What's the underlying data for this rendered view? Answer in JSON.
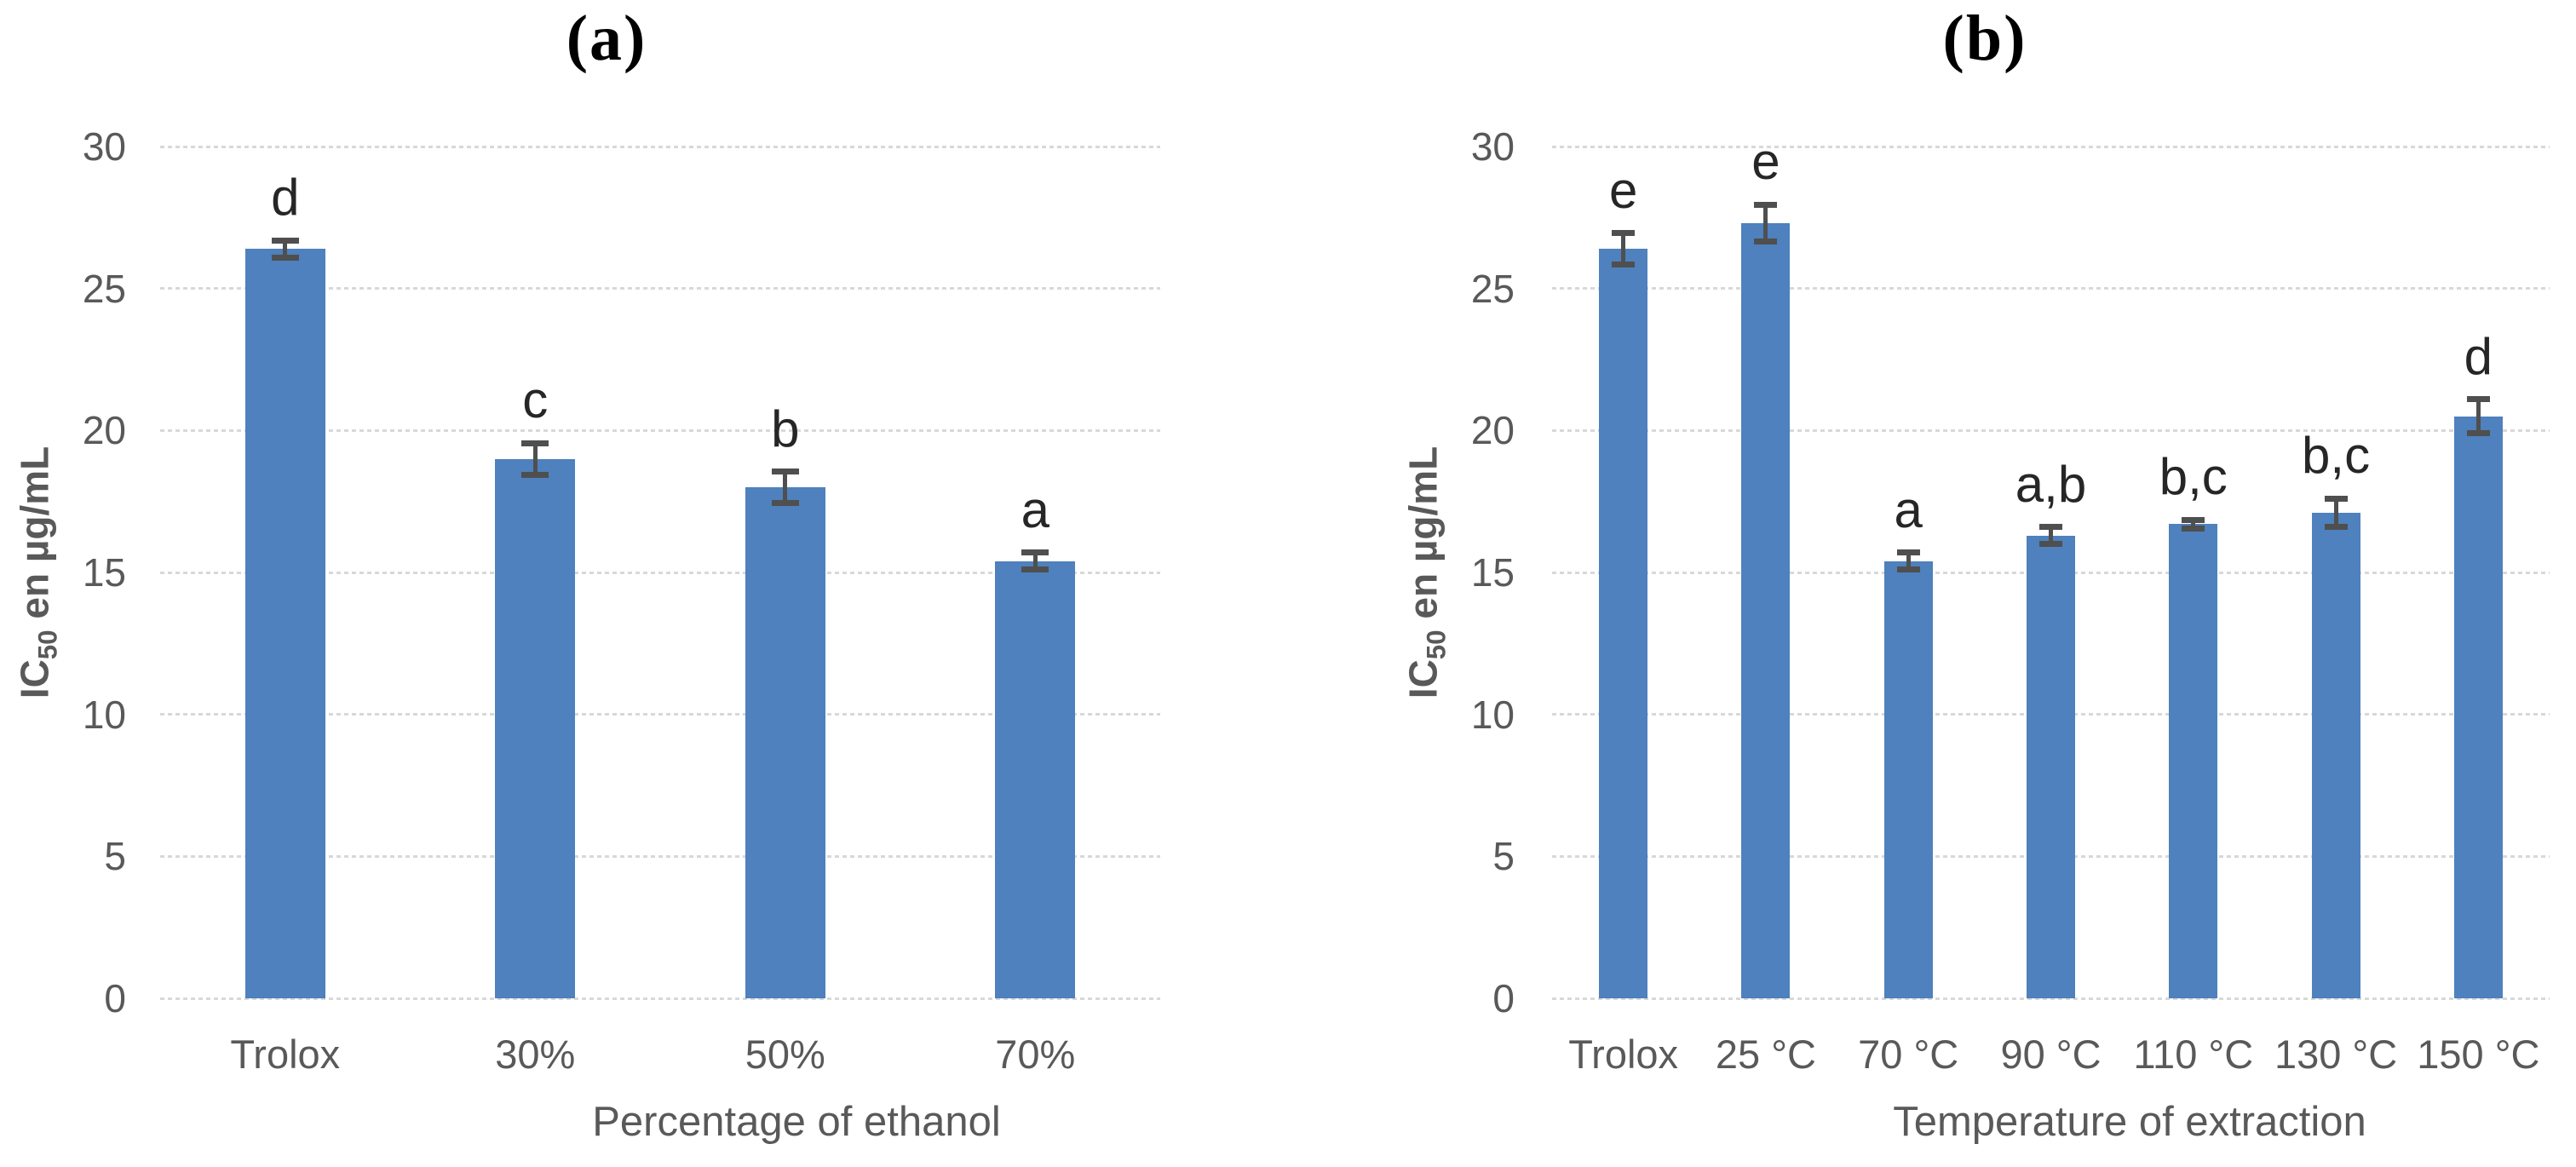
{
  "figure": {
    "description_visible_text_only": "Two-panel bar chart figure",
    "style": {
      "bar_color": "#4E81BD",
      "error_bar_color": "#4F4F4F",
      "axis_text_color": "#595959",
      "letter_color": "#262626",
      "grid_color": "#D8D8D8",
      "background": "#FFFFFF",
      "panel_title_color": "#000000"
    }
  },
  "chart_data": [
    {
      "type": "bar",
      "panel_label": "(a)",
      "categories": [
        "Trolox",
        "30%",
        "50%",
        "70%"
      ],
      "values": [
        26.4,
        19.0,
        18.0,
        15.4
      ],
      "error_bars": [
        0.3,
        0.55,
        0.55,
        0.3
      ],
      "significance_letters": [
        "d",
        "c",
        "b",
        "a"
      ],
      "xlabel": "Percentage of ethanol",
      "ylabel": "IC50 en µg/mL",
      "ylabel_parts": {
        "prefix": "IC",
        "subscript": "50",
        "suffix": " en µg/mL"
      },
      "ylim": [
        0,
        30
      ],
      "yticks": [
        0,
        5,
        10,
        15,
        20,
        25,
        30
      ],
      "grid": true,
      "legend": false
    },
    {
      "type": "bar",
      "panel_label": "(b)",
      "categories": [
        "Trolox",
        "25 °C",
        "70 °C",
        "90 °C",
        "110 °C",
        "130 °C",
        "150 °C"
      ],
      "values": [
        26.4,
        27.3,
        15.4,
        16.3,
        16.7,
        17.1,
        20.5
      ],
      "error_bars": [
        0.55,
        0.65,
        0.3,
        0.3,
        0.15,
        0.5,
        0.6
      ],
      "significance_letters": [
        "e",
        "e",
        "a",
        "a,b",
        "b,c",
        "b,c",
        "d"
      ],
      "xlabel": "Temperature of extraction",
      "ylabel": "IC50 en µg/mL",
      "ylabel_parts": {
        "prefix": "IC",
        "subscript": "50",
        "suffix": " en µg/mL"
      },
      "ylim": [
        0,
        30
      ],
      "yticks": [
        0,
        5,
        10,
        15,
        20,
        25,
        30
      ],
      "grid": true,
      "legend": false
    }
  ]
}
